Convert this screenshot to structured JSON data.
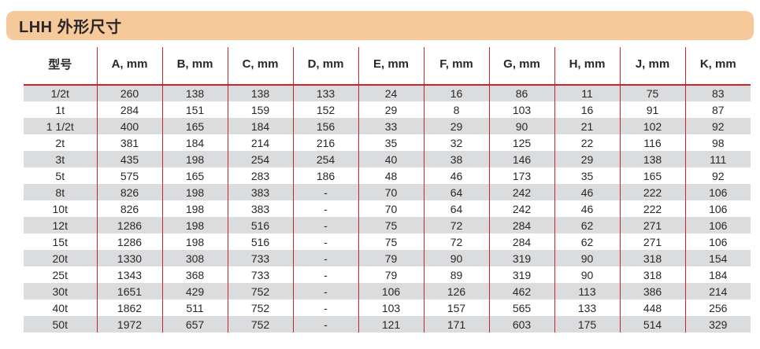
{
  "banner": {
    "title": "LHH 外形尺寸"
  },
  "table": {
    "columns": [
      {
        "label": "型号"
      },
      {
        "label": "A, mm"
      },
      {
        "label": "B, mm"
      },
      {
        "label": "C, mm"
      },
      {
        "label": "D, mm"
      },
      {
        "label": "E, mm"
      },
      {
        "label": "F, mm"
      },
      {
        "label": "G, mm"
      },
      {
        "label": "H, mm"
      },
      {
        "label": "J, mm"
      },
      {
        "label": "K, mm"
      }
    ],
    "rows": [
      {
        "cells": [
          "1/2t",
          "260",
          "138",
          "138",
          "133",
          "24",
          "16",
          "86",
          "11",
          "75",
          "83"
        ]
      },
      {
        "cells": [
          "1t",
          "284",
          "151",
          "159",
          "152",
          "29",
          "8",
          "103",
          "16",
          "91",
          "87"
        ]
      },
      {
        "cells": [
          "1 1/2t",
          "400",
          "165",
          "184",
          "156",
          "33",
          "29",
          "90",
          "21",
          "102",
          "92"
        ]
      },
      {
        "cells": [
          "2t",
          "381",
          "184",
          "214",
          "216",
          "35",
          "32",
          "125",
          "22",
          "116",
          "98"
        ]
      },
      {
        "cells": [
          "3t",
          "435",
          "198",
          "254",
          "254",
          "40",
          "38",
          "146",
          "29",
          "138",
          "111"
        ]
      },
      {
        "cells": [
          "5t",
          "575",
          "165",
          "283",
          "186",
          "48",
          "46",
          "173",
          "35",
          "165",
          "92"
        ]
      },
      {
        "cells": [
          "8t",
          "826",
          "198",
          "383",
          "-",
          "70",
          "64",
          "242",
          "46",
          "222",
          "106"
        ]
      },
      {
        "cells": [
          "10t",
          "826",
          "198",
          "383",
          "-",
          "70",
          "64",
          "242",
          "46",
          "222",
          "106"
        ]
      },
      {
        "cells": [
          "12t",
          "1286",
          "198",
          "516",
          "-",
          "75",
          "72",
          "284",
          "62",
          "271",
          "106"
        ]
      },
      {
        "cells": [
          "15t",
          "1286",
          "198",
          "516",
          "-",
          "75",
          "72",
          "284",
          "62",
          "271",
          "106"
        ]
      },
      {
        "cells": [
          "20t",
          "1330",
          "308",
          "733",
          "-",
          "79",
          "90",
          "319",
          "90",
          "318",
          "154"
        ]
      },
      {
        "cells": [
          "25t",
          "1343",
          "368",
          "733",
          "-",
          "79",
          "89",
          "319",
          "90",
          "318",
          "184"
        ]
      },
      {
        "cells": [
          "30t",
          "1651",
          "429",
          "752",
          "-",
          "106",
          "126",
          "462",
          "113",
          "386",
          "214"
        ]
      },
      {
        "cells": [
          "40t",
          "1862",
          "511",
          "752",
          "-",
          "103",
          "157",
          "565",
          "133",
          "448",
          "256"
        ]
      },
      {
        "cells": [
          "50t",
          "1972",
          "657",
          "752",
          "-",
          "121",
          "171",
          "603",
          "175",
          "514",
          "329"
        ]
      }
    ]
  },
  "colors": {
    "banner_bg": "#F5C99A",
    "rule_red": "#C4262C",
    "row_alt_bg": "#DBDCDD",
    "text": "#2B2728"
  }
}
